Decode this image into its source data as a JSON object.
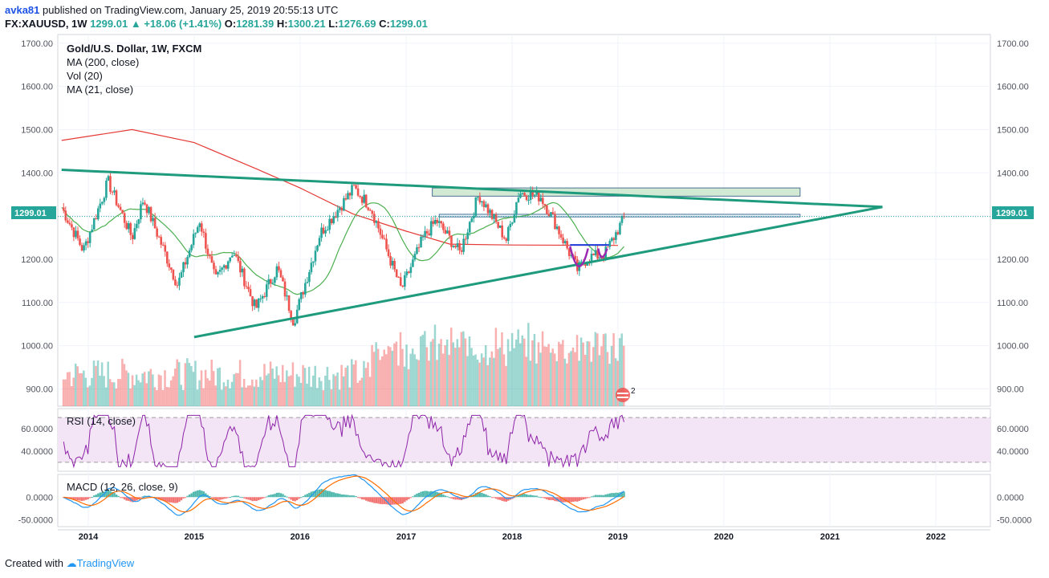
{
  "header": {
    "user": "avka81",
    "published": "published on TradingView.com, January 25, 2019 20:55:13 UTC",
    "symbol": "FX:XAUUSD, 1W",
    "last": "1299.01",
    "change_arrow": "▲",
    "change": "+18.06 (+1.41%)",
    "o_label": "O:",
    "o_val": "1281.39",
    "h_label": "H:",
    "h_val": "1300.21",
    "l_label": "L:",
    "l_val": "1276.69",
    "c_label": "C:",
    "c_val": "1299.01"
  },
  "legend": {
    "title": "Gold/U.S. Dollar, 1W, FXCM",
    "ma200": "MA (200, close)",
    "vol": "Vol (20)",
    "ma21": "MA (21, close)",
    "rsi": "RSI (14, close)",
    "macd": "MACD (12, 26, close, 9)"
  },
  "price_tag": "1299.01",
  "events_badge": "2",
  "footer": {
    "created": "Created with",
    "brand": "TradingView"
  },
  "colors": {
    "up": "#26a69a",
    "down": "#ef5350",
    "ma200": "#e53935",
    "ma21": "#4caf50",
    "trend": "#1e9a7d",
    "rsi": "#8e24aa",
    "rsi_bg": "#f3e5f5",
    "macd": "#2196f3",
    "signal": "#ff6d00"
  },
  "chart_data": {
    "type": "candlestick",
    "price_axis": {
      "ylim": [
        860,
        1720
      ],
      "ticks": [
        "1700.00",
        "1600.00",
        "1500.00",
        "1400.00",
        "1300.00",
        "1200.00",
        "1100.00",
        "1000.00",
        "900.00"
      ]
    },
    "rsi_axis": {
      "ylim": [
        22,
        78
      ],
      "ticks": [
        "60.0000",
        "40.0000"
      ],
      "bands": [
        30,
        70
      ]
    },
    "macd_axis": {
      "ylim": [
        -65,
        50
      ],
      "ticks": [
        "0.0000",
        "-50.0000"
      ]
    },
    "time_axis": {
      "ticks": [
        "2014",
        "2015",
        "2016",
        "2017",
        "2018",
        "2019",
        "2020",
        "2021",
        "2022"
      ]
    },
    "price_keypoints": [
      [
        "2013-10-01",
        1320
      ],
      [
        "2013-12-15",
        1220
      ],
      [
        "2014-03-10",
        1380
      ],
      [
        "2014-06-01",
        1250
      ],
      [
        "2014-07-10",
        1340
      ],
      [
        "2014-11-05",
        1140
      ],
      [
        "2015-01-20",
        1290
      ],
      [
        "2015-03-15",
        1150
      ],
      [
        "2015-05-15",
        1220
      ],
      [
        "2015-08-01",
        1085
      ],
      [
        "2015-10-15",
        1180
      ],
      [
        "2015-12-10",
        1055
      ],
      [
        "2016-03-10",
        1260
      ],
      [
        "2016-07-05",
        1365
      ],
      [
        "2016-09-01",
        1320
      ],
      [
        "2016-12-15",
        1130
      ],
      [
        "2017-03-01",
        1250
      ],
      [
        "2017-04-15",
        1290
      ],
      [
        "2017-07-05",
        1215
      ],
      [
        "2017-09-08",
        1350
      ],
      [
        "2017-12-12",
        1245
      ],
      [
        "2018-01-25",
        1355
      ],
      [
        "2018-04-10",
        1345
      ],
      [
        "2018-05-25",
        1290
      ],
      [
        "2018-08-15",
        1175
      ],
      [
        "2018-09-20",
        1205
      ],
      [
        "2018-11-15",
        1210
      ],
      [
        "2019-01-25",
        1299
      ]
    ],
    "ma200_keypoints": [
      [
        "2013-10-01",
        1475
      ],
      [
        "2014-06-01",
        1500
      ],
      [
        "2015-01-01",
        1470
      ],
      [
        "2015-08-01",
        1410
      ],
      [
        "2016-01-01",
        1365
      ],
      [
        "2016-07-01",
        1305
      ],
      [
        "2017-01-01",
        1265
      ],
      [
        "2017-06-01",
        1235
      ],
      [
        "2018-01-01",
        1233
      ],
      [
        "2019-01-01",
        1232
      ]
    ],
    "trendlines": [
      {
        "name": "upper",
        "from": [
          "2013-10-01",
          1407
        ],
        "to": [
          "2021-07-01",
          1321
        ]
      },
      {
        "name": "lower",
        "from": [
          "2015-01-01",
          1020
        ],
        "to": [
          "2021-07-01",
          1321
        ]
      }
    ],
    "zones": [
      {
        "from": [
          "2017-04-01",
          1365
        ],
        "to": [
          "2020-09-20",
          1346
        ]
      },
      {
        "from": [
          "2017-04-25",
          1304
        ],
        "to": [
          "2020-09-20",
          1298
        ]
      }
    ],
    "last_price": 1299.01
  }
}
